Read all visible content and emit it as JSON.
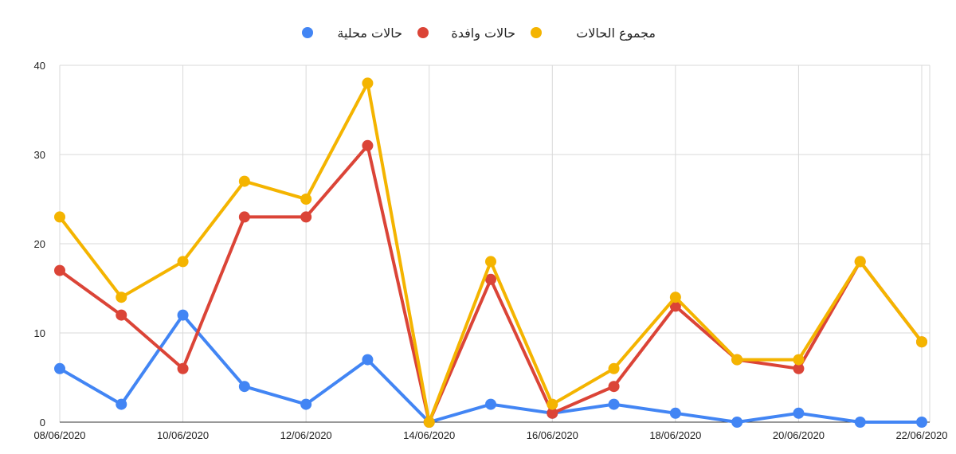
{
  "chart_data": {
    "type": "line",
    "title": "",
    "xlabel": "",
    "ylabel": "",
    "ylim": [
      0,
      40
    ],
    "y_ticks": [
      "0",
      "10",
      "20",
      "30",
      "40"
    ],
    "x_tick_labels": [
      "08/06/2020",
      "10/06/2020",
      "12/06/2020",
      "14/06/2020",
      "16/06/2020",
      "18/06/2020",
      "20/06/2020",
      "22/06/2020"
    ],
    "x": [
      "08/06/2020",
      "09/06/2020",
      "10/06/2020",
      "11/06/2020",
      "12/06/2020",
      "13/06/2020",
      "14/06/2020",
      "15/06/2020",
      "16/06/2020",
      "17/06/2020",
      "18/06/2020",
      "19/06/2020",
      "20/06/2020",
      "21/06/2020",
      "22/06/2020"
    ],
    "grid": true,
    "legend_position": "top-center",
    "series": [
      {
        "name": "حالات محلية",
        "color": "#4285F4",
        "values": [
          6,
          2,
          12,
          4,
          2,
          7,
          0,
          2,
          1,
          2,
          1,
          0,
          1,
          0,
          0
        ]
      },
      {
        "name": "حالات وافدة",
        "color": "#DB4437",
        "values": [
          17,
          12,
          6,
          23,
          23,
          31,
          0,
          16,
          1,
          4,
          13,
          7,
          6,
          18,
          9
        ]
      },
      {
        "name": "مجموع الحالات",
        "color": "#F4B400",
        "values": [
          23,
          14,
          18,
          27,
          25,
          38,
          0,
          18,
          2,
          6,
          14,
          7,
          7,
          18,
          9
        ]
      }
    ]
  }
}
